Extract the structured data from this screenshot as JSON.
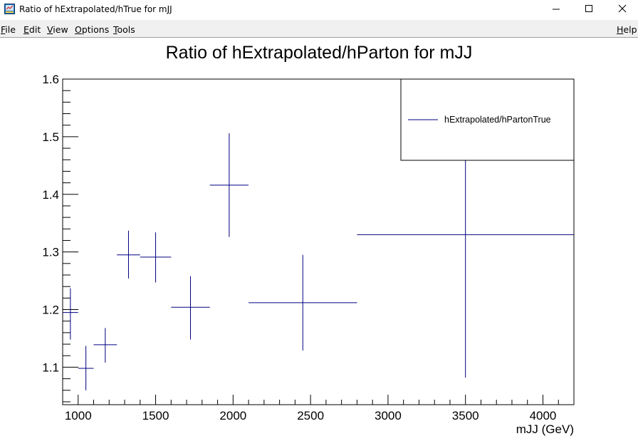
{
  "window": {
    "title": "Ratio of hExtrapolated/hTrue for mJJ",
    "icon": "root-canvas-icon",
    "controls": [
      "minimize-icon",
      "maximize-icon",
      "close-icon"
    ]
  },
  "menubar": {
    "items": [
      {
        "label": "File",
        "accel": "F",
        "rest": "ile"
      },
      {
        "label": "Edit",
        "accel": "E",
        "rest": "dit"
      },
      {
        "label": "View",
        "accel": "V",
        "rest": "iew"
      },
      {
        "label": "Options",
        "accel": "O",
        "rest": "ptions"
      },
      {
        "label": "Tools",
        "accel": "T",
        "rest": "ools"
      }
    ],
    "help": {
      "label": "Help",
      "accel": "H",
      "rest": "elp"
    }
  },
  "colors": {
    "series": "#000080",
    "axis": "#000000"
  },
  "chart_data": {
    "type": "scatter",
    "title": "Ratio of hExtrapolated/hParton for mJJ",
    "xlabel": "mJJ (GeV)",
    "ylabel": "",
    "xlim": [
      900,
      4200
    ],
    "ylim": [
      1.035,
      1.6
    ],
    "xticks": [
      1000,
      1500,
      2000,
      2500,
      3000,
      3500,
      4000
    ],
    "yticks": [
      1.1,
      1.2,
      1.3,
      1.4,
      1.5,
      1.6
    ],
    "ytick_labels": [
      "1.1",
      "1.2",
      "1.3",
      "1.4",
      "1.5",
      "1.6"
    ],
    "legend": {
      "entries": [
        "hExtrapolated/hPartonTrue"
      ],
      "placement": "top-right"
    },
    "series": [
      {
        "name": "hExtrapolated/hPartonTrue",
        "points": [
          {
            "x": 950,
            "xlo": 900,
            "xhi": 1000,
            "y": 1.195,
            "ylo": 1.148,
            "yhi": 1.237
          },
          {
            "x": 1050,
            "xlo": 1000,
            "xhi": 1100,
            "y": 1.098,
            "ylo": 1.06,
            "yhi": 1.137
          },
          {
            "x": 1175,
            "xlo": 1100,
            "xhi": 1250,
            "y": 1.139,
            "ylo": 1.108,
            "yhi": 1.168
          },
          {
            "x": 1325,
            "xlo": 1250,
            "xhi": 1400,
            "y": 1.295,
            "ylo": 1.254,
            "yhi": 1.337
          },
          {
            "x": 1500,
            "xlo": 1400,
            "xhi": 1600,
            "y": 1.291,
            "ylo": 1.247,
            "yhi": 1.334
          },
          {
            "x": 1725,
            "xlo": 1600,
            "xhi": 1850,
            "y": 1.204,
            "ylo": 1.148,
            "yhi": 1.258
          },
          {
            "x": 1975,
            "xlo": 1850,
            "xhi": 2100,
            "y": 1.416,
            "ylo": 1.326,
            "yhi": 1.506
          },
          {
            "x": 2450,
            "xlo": 2100,
            "xhi": 2800,
            "y": 1.212,
            "ylo": 1.129,
            "yhi": 1.295
          },
          {
            "x": 3500,
            "xlo": 2800,
            "xhi": 4200,
            "y": 1.33,
            "ylo": 1.082,
            "yhi": 1.6
          }
        ]
      }
    ]
  }
}
